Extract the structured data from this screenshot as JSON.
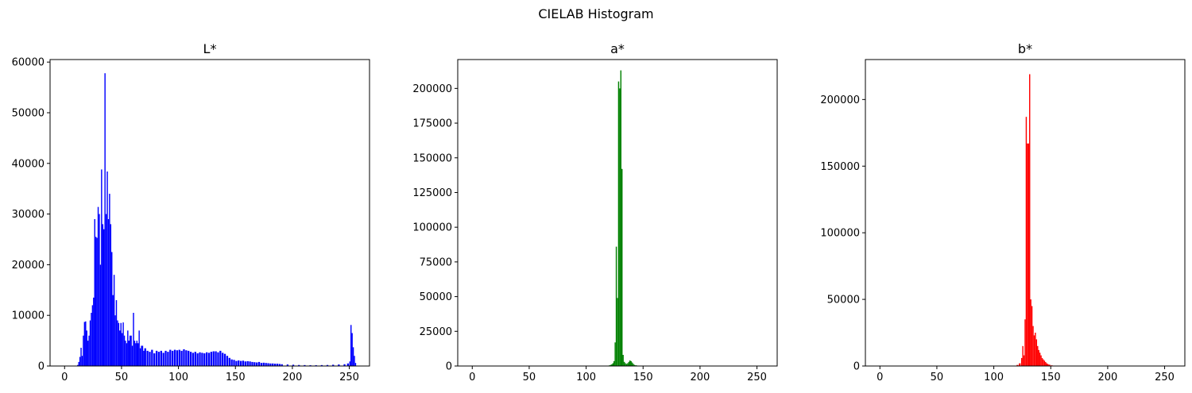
{
  "figure": {
    "title": "CIELAB Histogram"
  },
  "chart_data": [
    {
      "type": "bar",
      "title": "L*",
      "color": "#0000ff",
      "xlabel": "",
      "ylabel": "",
      "xlim": [
        -12.75,
        267.75
      ],
      "ylim": [
        0,
        60500
      ],
      "xticks": [
        0,
        50,
        100,
        150,
        200,
        250
      ],
      "yticks": [
        0,
        10000,
        20000,
        30000,
        40000,
        50000,
        60000
      ],
      "grid": false,
      "x": [
        10,
        11,
        12,
        13,
        14,
        15,
        16,
        17,
        18,
        19,
        20,
        21,
        22,
        23,
        24,
        25,
        26,
        27,
        28,
        29,
        30,
        31,
        32,
        33,
        34,
        35,
        36,
        37,
        38,
        39,
        40,
        41,
        42,
        43,
        44,
        45,
        46,
        47,
        48,
        49,
        50,
        51,
        52,
        53,
        54,
        55,
        56,
        57,
        58,
        59,
        60,
        61,
        62,
        63,
        64,
        65,
        66,
        67,
        68,
        69,
        70,
        72,
        74,
        76,
        78,
        80,
        82,
        84,
        86,
        88,
        90,
        92,
        94,
        96,
        98,
        100,
        102,
        104,
        106,
        108,
        110,
        112,
        114,
        116,
        118,
        120,
        122,
        124,
        126,
        128,
        130,
        132,
        134,
        136,
        138,
        140,
        142,
        144,
        146,
        148,
        150,
        152,
        154,
        156,
        158,
        160,
        162,
        164,
        166,
        168,
        170,
        172,
        174,
        176,
        178,
        180,
        182,
        184,
        186,
        188,
        190,
        195,
        200,
        205,
        210,
        215,
        220,
        225,
        230,
        235,
        240,
        245,
        248,
        250,
        251,
        252,
        253,
        254,
        255
      ],
      "values": [
        50,
        200,
        800,
        1800,
        3600,
        2000,
        6000,
        8700,
        8800,
        7000,
        5000,
        6000,
        9000,
        10500,
        12000,
        13500,
        29000,
        25500,
        25300,
        31400,
        30000,
        20000,
        38800,
        28000,
        27000,
        57800,
        30000,
        38400,
        29000,
        34000,
        28000,
        22500,
        14000,
        18000,
        10000,
        13000,
        9000,
        8500,
        7000,
        8500,
        6500,
        8600,
        6000,
        5000,
        4500,
        7000,
        5000,
        6000,
        6000,
        4000,
        10500,
        5000,
        4500,
        5000,
        4500,
        7000,
        3500,
        4000,
        4000,
        3000,
        3500,
        3000,
        2800,
        3200,
        2500,
        3000,
        2800,
        3000,
        2600,
        3000,
        2800,
        3200,
        3000,
        3200,
        3100,
        3200,
        3000,
        3300,
        3100,
        3000,
        2800,
        2600,
        2800,
        2500,
        2700,
        2600,
        2500,
        2700,
        2600,
        2800,
        2900,
        2900,
        2700,
        3000,
        2600,
        2400,
        2000,
        1600,
        1300,
        1200,
        1000,
        1100,
        1000,
        1050,
        900,
        950,
        900,
        800,
        750,
        700,
        800,
        600,
        650,
        600,
        550,
        500,
        500,
        450,
        450,
        400,
        350,
        300,
        250,
        200,
        180,
        150,
        150,
        180,
        200,
        250,
        300,
        350,
        500,
        900,
        8100,
        6500,
        3700,
        2000,
        600
      ]
    },
    {
      "type": "bar",
      "title": "a*",
      "color": "#008000",
      "xlabel": "",
      "ylabel": "",
      "xlim": [
        -12.75,
        267.75
      ],
      "ylim": [
        0,
        220800
      ],
      "xticks": [
        0,
        50,
        100,
        150,
        200,
        250
      ],
      "yticks": [
        0,
        25000,
        50000,
        75000,
        100000,
        125000,
        150000,
        175000,
        200000
      ],
      "grid": false,
      "x": [
        0,
        50,
        100,
        118,
        120,
        121,
        122,
        123,
        124,
        125,
        126,
        127,
        128,
        129,
        130,
        131,
        132,
        133,
        134,
        135,
        136,
        137,
        138,
        139,
        140,
        141,
        142,
        143,
        145,
        150,
        200,
        255
      ],
      "values": [
        100,
        100,
        100,
        200,
        500,
        800,
        1200,
        2000,
        3500,
        17000,
        86000,
        49000,
        205000,
        200000,
        213000,
        142000,
        8000,
        3000,
        2000,
        1500,
        2000,
        3000,
        4000,
        3500,
        2500,
        1500,
        800,
        500,
        300,
        200,
        100,
        50
      ]
    },
    {
      "type": "bar",
      "title": "b*",
      "color": "#ff0000",
      "xlabel": "",
      "ylabel": "",
      "xlim": [
        -12.75,
        267.75
      ],
      "ylim": [
        0,
        230000
      ],
      "xticks": [
        0,
        50,
        100,
        150,
        200,
        250
      ],
      "yticks": [
        0,
        50000,
        100000,
        150000,
        200000
      ],
      "grid": false,
      "x": [
        0,
        50,
        100,
        118,
        120,
        122,
        124,
        125,
        126,
        127,
        128,
        129,
        130,
        131,
        132,
        133,
        134,
        135,
        136,
        137,
        138,
        139,
        140,
        141,
        142,
        143,
        144,
        145,
        146,
        147,
        148,
        150,
        200,
        255
      ],
      "values": [
        100,
        100,
        100,
        300,
        800,
        2000,
        6000,
        15000,
        8000,
        35000,
        187000,
        167000,
        167000,
        219000,
        50000,
        45000,
        30000,
        23000,
        25000,
        20000,
        15000,
        12000,
        10000,
        8000,
        6000,
        5000,
        4000,
        3000,
        2000,
        1500,
        1000,
        500,
        100,
        50
      ]
    }
  ]
}
